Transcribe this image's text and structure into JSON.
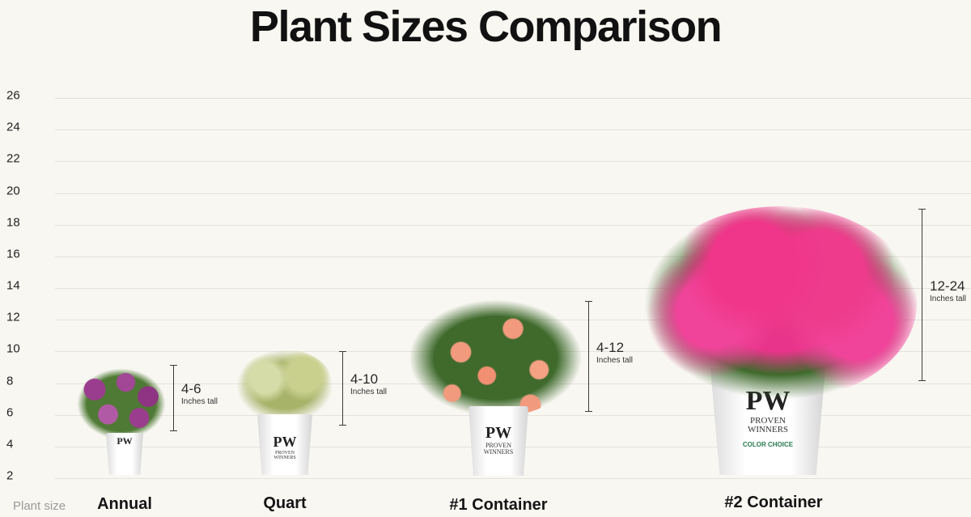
{
  "title": "Plant Sizes Comparison",
  "chart_data": {
    "type": "range",
    "title": "Plant Sizes Comparison",
    "xlabel": "Plant size",
    "ylabel": "",
    "ylim": [
      2,
      26
    ],
    "yticks": [
      "26",
      "24",
      "22",
      "20",
      "18",
      "16",
      "14",
      "12",
      "10",
      "8",
      "6",
      "4",
      "2"
    ],
    "grid": true,
    "categories": [
      "Annual",
      "Quart",
      "#1 Container",
      "#2 Container"
    ],
    "ranges": [
      {
        "label": "4-6",
        "unit": "Inches tall",
        "min": 4,
        "max": 6
      },
      {
        "label": "4-10",
        "unit": "Inches tall",
        "min": 4,
        "max": 10
      },
      {
        "label": "4-12",
        "unit": "Inches tall",
        "min": 4,
        "max": 12
      },
      {
        "label": "12-24",
        "unit": "Inches tall",
        "min": 12,
        "max": 24
      }
    ]
  },
  "pot_brand": {
    "logo": "PW",
    "line1": "PROVEN",
    "line2": "WINNERS",
    "sub": "COLOR CHOICE"
  },
  "colors": {
    "background": "#f8f7f2",
    "annual_flower": "#9b3d8e",
    "quart_foliage": "#b9c27a",
    "rose": "#f29a7e",
    "weigela": "#f0368a"
  }
}
